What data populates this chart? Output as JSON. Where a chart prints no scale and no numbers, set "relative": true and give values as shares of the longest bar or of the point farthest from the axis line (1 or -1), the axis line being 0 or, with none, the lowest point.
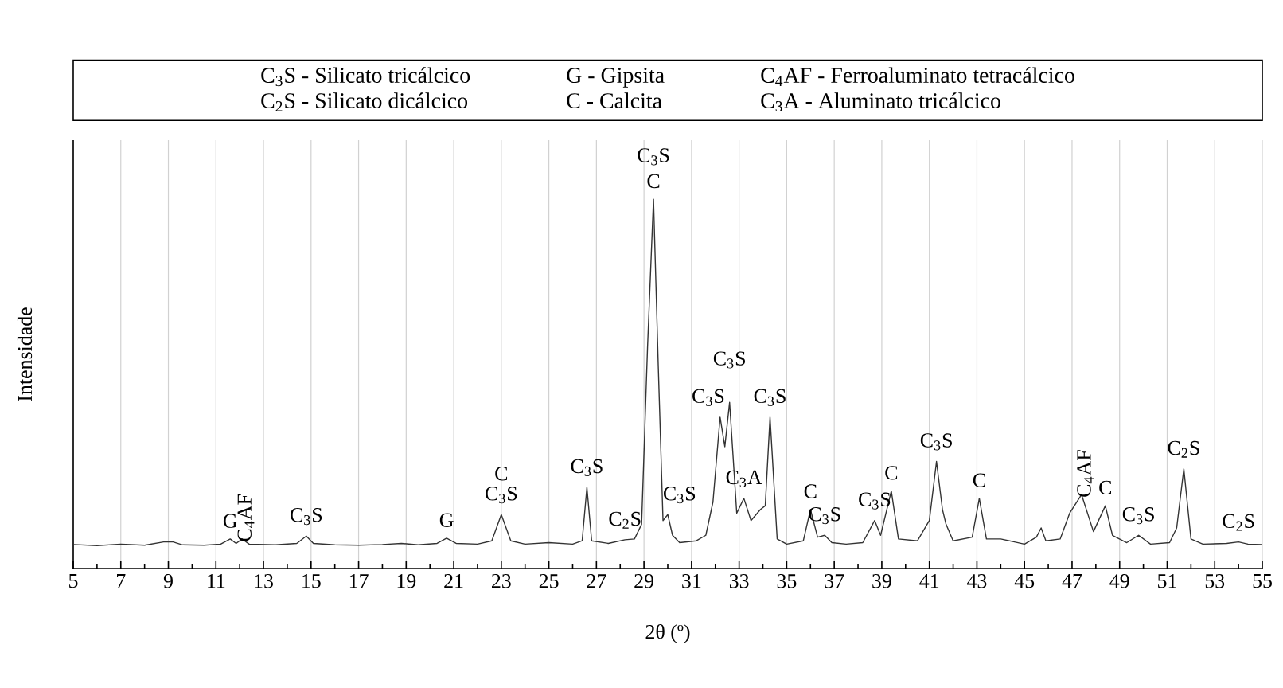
{
  "chart_data": {
    "type": "line",
    "relative": true,
    "xlabel": "2θ (º)",
    "ylabel": "Intensidade",
    "xlim": [
      5,
      55
    ],
    "xticks": [
      5,
      7,
      9,
      11,
      13,
      15,
      17,
      19,
      21,
      23,
      25,
      27,
      29,
      31,
      33,
      35,
      37,
      39,
      41,
      43,
      45,
      47,
      49,
      51,
      53,
      55
    ],
    "grid": "x",
    "series": [
      {
        "color": "#333333",
        "x": [
          5,
          6,
          7,
          8,
          8.8,
          9.2,
          9.6,
          10.5,
          11.2,
          11.6,
          11.85,
          12.1,
          12.4,
          13.5,
          14.4,
          14.8,
          15.1,
          16,
          17,
          18,
          18.8,
          19.5,
          20.3,
          20.7,
          21.1,
          22,
          22.6,
          23.0,
          23.4,
          24,
          25,
          26,
          26.4,
          26.6,
          26.8,
          27.5,
          28.2,
          28.6,
          28.9,
          29.15,
          29.4,
          29.6,
          29.8,
          30.0,
          30.2,
          30.5,
          31.2,
          31.6,
          31.9,
          32.2,
          32.4,
          32.6,
          32.9,
          33.2,
          33.5,
          33.9,
          34.1,
          34.3,
          34.6,
          35,
          35.7,
          36.0,
          36.3,
          36.6,
          36.9,
          37.5,
          38.2,
          38.7,
          38.95,
          39.4,
          39.7,
          40.5,
          41.0,
          41.3,
          41.55,
          41.7,
          42.0,
          42.8,
          43.1,
          43.4,
          44.0,
          45.0,
          45.5,
          45.7,
          45.9,
          46.5,
          46.9,
          47.4,
          47.9,
          48.4,
          48.7,
          49.3,
          49.8,
          50.3,
          51.1,
          51.4,
          51.7,
          52.0,
          52.5,
          53.5,
          54.0,
          54.4,
          55
        ],
        "values": [
          0.065,
          0.062,
          0.066,
          0.063,
          0.072,
          0.072,
          0.064,
          0.063,
          0.066,
          0.08,
          0.068,
          0.08,
          0.066,
          0.064,
          0.068,
          0.088,
          0.068,
          0.064,
          0.063,
          0.065,
          0.068,
          0.064,
          0.068,
          0.082,
          0.068,
          0.066,
          0.075,
          0.146,
          0.075,
          0.066,
          0.07,
          0.066,
          0.075,
          0.22,
          0.075,
          0.068,
          0.078,
          0.08,
          0.12,
          0.6,
          1.0,
          0.55,
          0.13,
          0.146,
          0.09,
          0.07,
          0.075,
          0.09,
          0.18,
          0.41,
          0.33,
          0.45,
          0.15,
          0.19,
          0.13,
          0.16,
          0.17,
          0.41,
          0.08,
          0.066,
          0.075,
          0.16,
          0.085,
          0.09,
          0.07,
          0.066,
          0.07,
          0.13,
          0.09,
          0.21,
          0.08,
          0.075,
          0.13,
          0.29,
          0.16,
          0.12,
          0.075,
          0.085,
          0.19,
          0.08,
          0.08,
          0.066,
          0.085,
          0.11,
          0.075,
          0.08,
          0.15,
          0.2,
          0.1,
          0.17,
          0.09,
          0.07,
          0.09,
          0.066,
          0.07,
          0.11,
          0.27,
          0.08,
          0.066,
          0.068,
          0.072,
          0.066,
          0.065
        ]
      }
    ],
    "annotations": [
      "C$_{3}$S - Silicato tricálcico",
      "G - Gipsita",
      "C$_{4}$AF - Ferroaluminato tetracálcico",
      "C$_{2}$S - Silicato dicálcico",
      "C - Calcita",
      "C$_{3}$A - Aluminato tricálcico",
      {
        "text": "G",
        "x": 11.6,
        "y": 0.08
      },
      {
        "text": "C$_{4}$AF",
        "x": 12.1,
        "y": 0.08
      },
      {
        "text": "C$_{3}$S",
        "x": 14.8,
        "y": 0.088
      },
      {
        "text": "G",
        "x": 20.7,
        "y": 0.082
      },
      {
        "text": "C$_{3}$S",
        "x": 23.0,
        "y": 0.146
      },
      {
        "text": "C",
        "x": 23.0,
        "y": 0.146
      },
      {
        "text": "C$_{3}$S",
        "x": 26.6,
        "y": 0.22
      },
      {
        "text": "C$_{2}$S",
        "x": 28.2,
        "y": 0.078
      },
      {
        "text": "C",
        "x": 29.4,
        "y": 1.0
      },
      {
        "text": "C$_{3}$S",
        "x": 29.4,
        "y": 1.0
      },
      {
        "text": "C$_{3}$S",
        "x": 30.0,
        "y": 0.146
      },
      {
        "text": "C$_{3}$S",
        "x": 32.2,
        "y": 0.41
      },
      {
        "text": "C$_{3}$S",
        "x": 32.6,
        "y": 0.45
      },
      {
        "text": "C$_{3}$A",
        "x": 33.2,
        "y": 0.19
      },
      {
        "text": "C$_{3}$S",
        "x": 34.3,
        "y": 0.41
      },
      {
        "text": "C",
        "x": 36.0,
        "y": 0.16
      },
      {
        "text": "C$_{3}$S",
        "x": 36.6,
        "y": 0.09
      },
      {
        "text": "C$_{3}$S",
        "x": 38.7,
        "y": 0.13
      },
      {
        "text": "C",
        "x": 39.4,
        "y": 0.21
      },
      {
        "text": "C$_{3}$S",
        "x": 41.3,
        "y": 0.29
      },
      {
        "text": "C",
        "x": 43.1,
        "y": 0.19
      },
      {
        "text": "C$_{4}$AF",
        "x": 47.4,
        "y": 0.2
      },
      {
        "text": "C",
        "x": 48.4,
        "y": 0.17
      },
      {
        "text": "C$_{3}$S",
        "x": 49.8,
        "y": 0.09
      },
      {
        "text": "C$_{2}$S",
        "x": 51.7,
        "y": 0.27
      },
      {
        "text": "C$_{2}$S",
        "x": 54.0,
        "y": 0.072
      }
    ]
  }
}
